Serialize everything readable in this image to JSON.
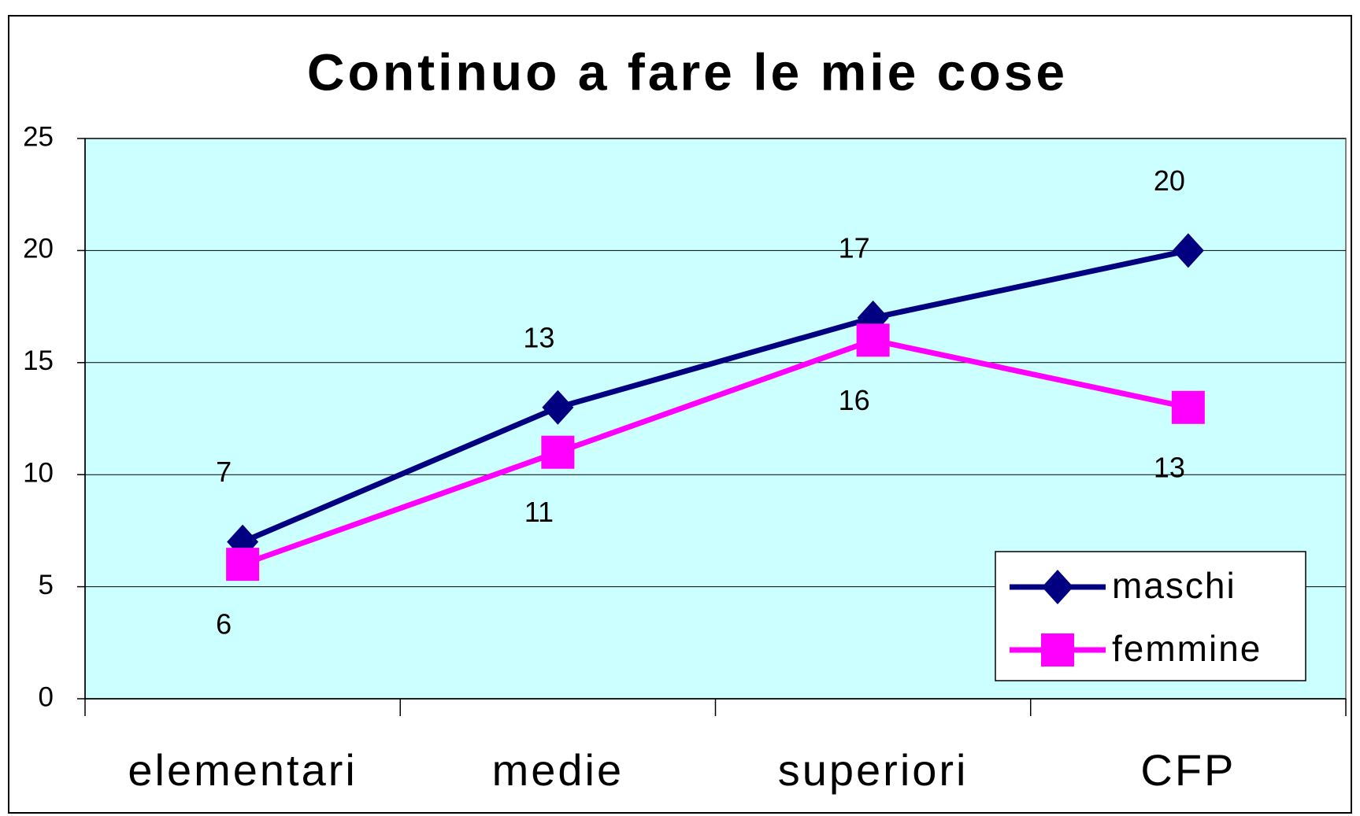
{
  "chart_data": {
    "type": "line",
    "title": "Continuo a fare le mie cose",
    "categories": [
      "elementari",
      "medie",
      "superiori",
      "CFP"
    ],
    "series": [
      {
        "name": "maschi",
        "color": "#000080",
        "marker": "diamond",
        "values": [
          7,
          13,
          17,
          20
        ]
      },
      {
        "name": "femmine",
        "color": "#ff00ff",
        "marker": "square",
        "values": [
          6,
          11,
          16,
          13
        ]
      }
    ],
    "ylim": [
      0,
      25
    ],
    "yticks": [
      0,
      5,
      10,
      15,
      20,
      25
    ],
    "grid": true,
    "legend": "lower right",
    "plot_background": "#ccffff"
  }
}
